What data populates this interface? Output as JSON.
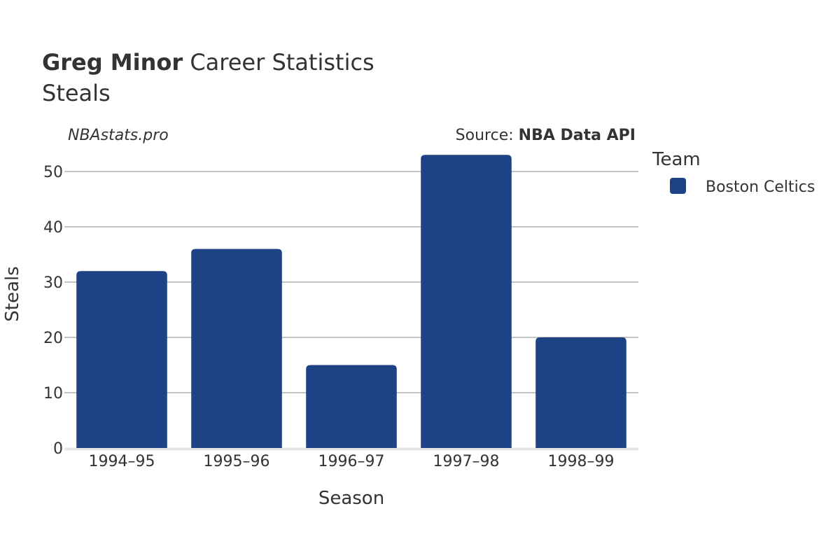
{
  "title": {
    "player": "Greg Minor",
    "suffix": "Career Statistics",
    "subtitle": "Steals"
  },
  "watermark": "NBAstats.pro",
  "source": {
    "prefix": "Source:",
    "name": "NBA Data API"
  },
  "colors": {
    "bar": "#1d4286",
    "grid": "#888888",
    "baseline": "#e6e6e6"
  },
  "chart_data": {
    "type": "bar",
    "categories": [
      "1994–95",
      "1995–96",
      "1996–97",
      "1997–98",
      "1998–99"
    ],
    "series": [
      {
        "name": "Boston Celtics",
        "values": [
          32,
          36,
          15,
          53,
          20
        ]
      }
    ],
    "xlabel": "Season",
    "ylabel": "Steals",
    "ylim": [
      0,
      55
    ],
    "yticks": [
      0,
      10,
      20,
      30,
      40,
      50
    ],
    "grid": true,
    "legend": {
      "title": "Team",
      "placement": "right"
    }
  }
}
